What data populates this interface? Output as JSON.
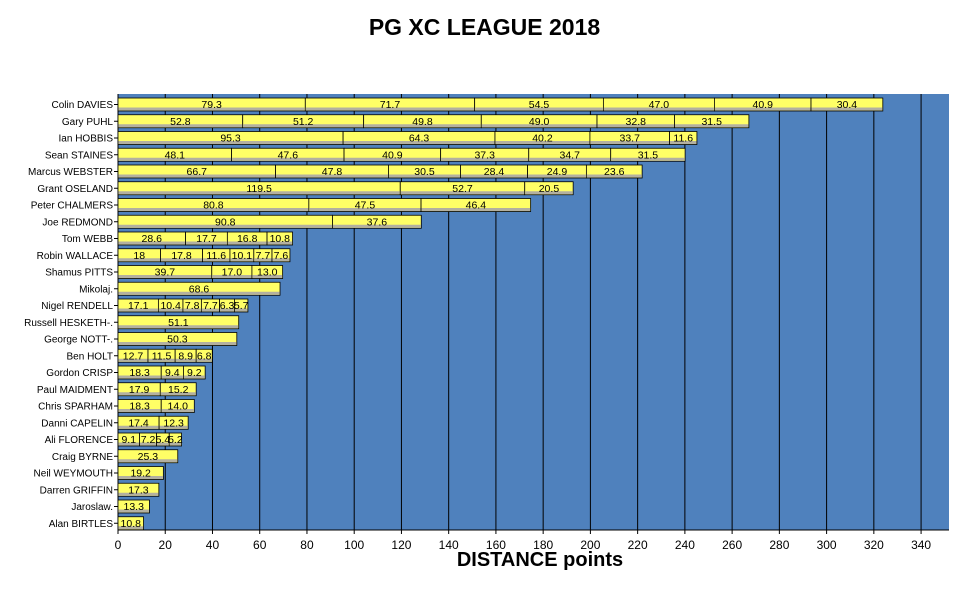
{
  "chart_data": {
    "type": "bar",
    "orientation": "horizontal",
    "stacked": true,
    "title": "PG XC LEAGUE 2018",
    "xlabel": "DISTANCE points",
    "ylabel": "",
    "xlim": [
      0,
      352
    ],
    "xticks": [
      0,
      20,
      40,
      60,
      80,
      100,
      120,
      140,
      160,
      180,
      200,
      220,
      240,
      260,
      280,
      300,
      320,
      340
    ],
    "grid": true,
    "legend": "none",
    "colors": {
      "plot_background": "#4f81bd",
      "bar_fill": "#ffff66",
      "bar_shadow": "#b3b0a0",
      "gridline": "#000000"
    },
    "pilots": [
      {
        "name": "Colin DAVIES",
        "scores": [
          79.3,
          71.7,
          54.5,
          47.0,
          40.9,
          30.4
        ]
      },
      {
        "name": "Gary PUHL",
        "scores": [
          52.8,
          51.2,
          49.8,
          49.0,
          32.8,
          31.5
        ]
      },
      {
        "name": "Ian HOBBIS",
        "scores": [
          95.3,
          64.3,
          40.2,
          33.7,
          11.6
        ]
      },
      {
        "name": "Sean STAINES",
        "scores": [
          48.1,
          47.6,
          40.9,
          37.3,
          34.7,
          31.5
        ]
      },
      {
        "name": "Marcus WEBSTER",
        "scores": [
          66.7,
          47.8,
          30.5,
          28.4,
          24.9,
          23.6
        ]
      },
      {
        "name": "Grant OSELAND",
        "scores": [
          119.5,
          52.7,
          20.5
        ]
      },
      {
        "name": "Peter CHALMERS",
        "scores": [
          80.8,
          47.5,
          46.4
        ]
      },
      {
        "name": "Joe REDMOND",
        "scores": [
          90.8,
          37.6
        ]
      },
      {
        "name": "Tom WEBB",
        "scores": [
          28.6,
          17.7,
          16.8,
          10.8
        ]
      },
      {
        "name": "Robin WALLACE",
        "scores": [
          18,
          17.8,
          11.6,
          10.1,
          7.7,
          7.6
        ]
      },
      {
        "name": "Shamus PITTS",
        "scores": [
          39.7,
          17.0,
          13.0
        ]
      },
      {
        "name": "Mikolaj.",
        "scores": [
          68.6
        ]
      },
      {
        "name": "Nigel RENDELL",
        "scores": [
          17.1,
          10.4,
          7.8,
          7.7,
          6.3,
          5.7
        ]
      },
      {
        "name": "Russell HESKETH-.",
        "scores": [
          51.1
        ]
      },
      {
        "name": "George NOTT-.",
        "scores": [
          50.3
        ]
      },
      {
        "name": "Ben HOLT",
        "scores": [
          12.7,
          11.5,
          8.9,
          6.8
        ]
      },
      {
        "name": "Gordon CRISP",
        "scores": [
          18.3,
          9.4,
          9.2
        ]
      },
      {
        "name": "Paul MAIDMENT",
        "scores": [
          17.9,
          15.2
        ]
      },
      {
        "name": "Chris SPARHAM",
        "scores": [
          18.3,
          14.0
        ]
      },
      {
        "name": "Danni CAPELIN",
        "scores": [
          17.4,
          12.3
        ]
      },
      {
        "name": "Ali FLORENCE",
        "scores": [
          9.1,
          7.2,
          5.4,
          5.2
        ]
      },
      {
        "name": "Craig BYRNE",
        "scores": [
          25.3
        ]
      },
      {
        "name": "Neil WEYMOUTH",
        "scores": [
          19.2
        ]
      },
      {
        "name": "Darren GRIFFIN",
        "scores": [
          17.3
        ]
      },
      {
        "name": "Jaroslaw.",
        "scores": [
          13.3
        ]
      },
      {
        "name": "Alan BIRTLES",
        "scores": [
          10.8
        ]
      }
    ],
    "segment_labels": [
      [
        "79.3",
        "71.7",
        "54.5",
        "47.0",
        "40.9",
        "30.4"
      ],
      [
        "52.8",
        "51.2",
        "49.8",
        "49.0",
        "32.8",
        "31.5"
      ],
      [
        "95.3",
        "64.3",
        "40.2",
        "33.7",
        "11.6"
      ],
      [
        "48.1",
        "47.6",
        "40.9",
        "37.3",
        "34.7",
        "31.5"
      ],
      [
        "66.7",
        "47.8",
        "30.5",
        "28.4",
        "24.9",
        "23.6"
      ],
      [
        "119.5",
        "52.7",
        "20.5"
      ],
      [
        "80.8",
        "47.5",
        "46.4"
      ],
      [
        "90.8",
        "37.6"
      ],
      [
        "28.6",
        "17.7",
        "16.8",
        "10.8"
      ],
      [
        "18",
        "17.8",
        "11.6",
        "10.1",
        "7.7",
        "7.6"
      ],
      [
        "39.7",
        "17.0",
        "13.0"
      ],
      [
        "68.6"
      ],
      [
        "17.1",
        "10.4",
        "7.8",
        "7.7",
        "6.3",
        "5.7"
      ],
      [
        "51.1"
      ],
      [
        "50.3"
      ],
      [
        "12.7",
        "11.5",
        "8.9",
        "6.8"
      ],
      [
        "18.3",
        "9.4",
        "9.2"
      ],
      [
        "17.9",
        "15.2"
      ],
      [
        "18.3",
        "14.0"
      ],
      [
        "17.4",
        "12.3"
      ],
      [
        "9.1",
        "7.2",
        "5.4",
        "5.2"
      ],
      [
        "25.3"
      ],
      [
        "19.2"
      ],
      [
        "17.3"
      ],
      [
        "13.3"
      ],
      [
        "10.8"
      ]
    ]
  }
}
